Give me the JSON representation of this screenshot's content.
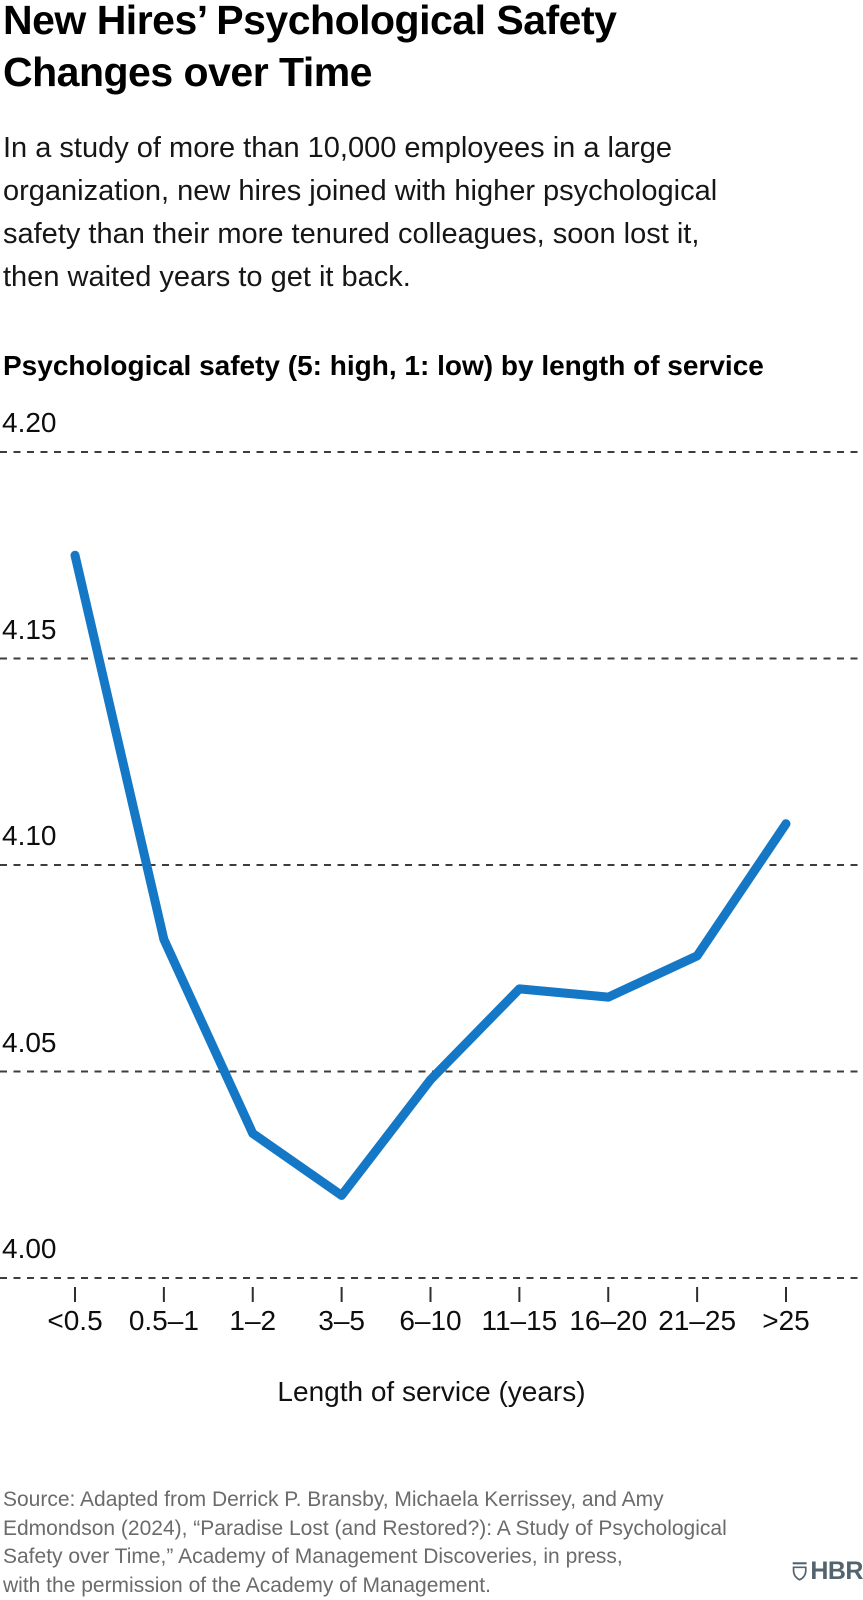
{
  "header": {
    "title_lines": [
      "New Hires’ Psychological Safety",
      "Changes over Time"
    ],
    "intro_lines": [
      "In a study of more than 10,000 employees in a large",
      "organization, new hires joined with higher psychological",
      "safety than their more tenured colleagues, soon lost it,",
      "then waited years to get it back."
    ]
  },
  "chart_data": {
    "type": "line",
    "title": "Psychological safety (5: high, 1: low) by length of service",
    "categories": [
      "<0.5",
      "0.5–1",
      "1–2",
      "3–5",
      "6–10",
      "11–15",
      "16–20",
      "21–25",
      ">25"
    ],
    "values": [
      4.175,
      4.082,
      4.035,
      4.02,
      4.048,
      4.07,
      4.068,
      4.078,
      4.11
    ],
    "xlabel": "Length of service (years)",
    "ylabel": "Psychological safety",
    "ylim": [
      4.0,
      4.2
    ],
    "yticks": [
      4.2,
      4.15,
      4.1,
      4.05,
      4.0
    ],
    "ytick_labels": [
      "4.20",
      "4.15",
      "4.10",
      "4.05",
      "4.00"
    ],
    "grid": "horizontal dashed",
    "legend": "none",
    "line_color": "#1478c6",
    "gridline_color": "#3d3d3d",
    "tick_color": "#2e2e2e"
  },
  "footer": {
    "source_lines": [
      "Source: Adapted from Derrick P. Bransby, Michaela Kerrissey, and Amy",
      "Edmondson (2024), “Paradise Lost (and Restored?): A Study of Psychological",
      "Safety over Time,” Academy of Management Discoveries, in press,",
      "with the permission of the Academy of Management."
    ],
    "logo_text": "HBR",
    "logo_color": "#54646e"
  }
}
